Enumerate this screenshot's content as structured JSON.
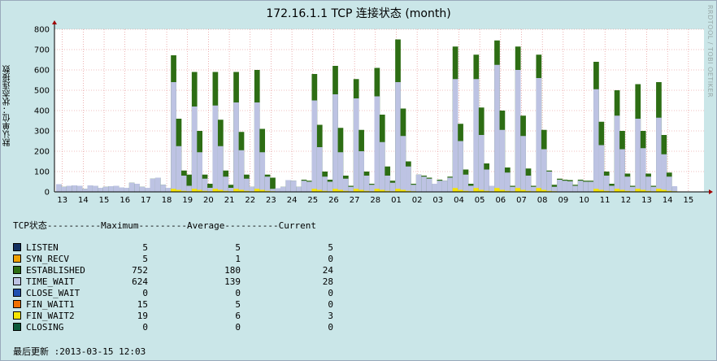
{
  "title": "172.16.1.1 TCP 连接状态 (month)",
  "watermark": "RRDTOOL / TOBI OETIKER",
  "chart_data": {
    "type": "bar",
    "title": "172.16.1.1 TCP 连接状态 (month)",
    "ylabel": "默认单位：状态连接数",
    "ylim": [
      0,
      800
    ],
    "yticks": [
      0,
      100,
      200,
      300,
      400,
      500,
      600,
      700,
      800
    ],
    "xtick_labels": [
      "13",
      "14",
      "15",
      "16",
      "17",
      "18",
      "19",
      "20",
      "21",
      "22",
      "23",
      "24",
      "25",
      "26",
      "27",
      "28",
      "01",
      "02",
      "03",
      "04",
      "05",
      "06",
      "07",
      "08",
      "09",
      "10",
      "11",
      "12",
      "13",
      "14",
      "15"
    ],
    "grid": true,
    "colors": {
      "established": "#2d6d14",
      "time_wait": "#bdc3e3",
      "fin_wait2": "#f5e400"
    },
    "samples_per_day": 4,
    "established": [
      38,
      25,
      30,
      32,
      30,
      15,
      32,
      30,
      20,
      25,
      28,
      30,
      22,
      20,
      45,
      40,
      25,
      20,
      65,
      70,
      35,
      20,
      672,
      360,
      105,
      85,
      590,
      300,
      85,
      40,
      590,
      355,
      105,
      35,
      590,
      295,
      85,
      25,
      600,
      310,
      85,
      70,
      18,
      25,
      58,
      55,
      25,
      60,
      55,
      580,
      330,
      100,
      60,
      620,
      315,
      80,
      30,
      555,
      305,
      100,
      40,
      610,
      380,
      125,
      55,
      750,
      410,
      150,
      40,
      85,
      80,
      70,
      40,
      60,
      55,
      75,
      715,
      335,
      110,
      40,
      675,
      415,
      140,
      30,
      745,
      400,
      120,
      30,
      715,
      375,
      115,
      30,
      675,
      305,
      105,
      35,
      65,
      60,
      58,
      35,
      60,
      55,
      55,
      640,
      345,
      100,
      40,
      500,
      300,
      90,
      30,
      530,
      300,
      90,
      30,
      540,
      280,
      95,
      25
    ],
    "time_wait": [
      38,
      25,
      30,
      32,
      30,
      15,
      32,
      30,
      20,
      25,
      28,
      30,
      22,
      20,
      45,
      40,
      25,
      20,
      65,
      70,
      35,
      20,
      540,
      225,
      80,
      30,
      420,
      195,
      65,
      20,
      425,
      225,
      75,
      20,
      440,
      205,
      65,
      25,
      440,
      195,
      75,
      15,
      18,
      25,
      58,
      55,
      25,
      55,
      50,
      450,
      220,
      75,
      50,
      480,
      195,
      65,
      25,
      460,
      200,
      80,
      35,
      470,
      245,
      80,
      45,
      540,
      275,
      125,
      35,
      85,
      75,
      65,
      40,
      55,
      55,
      70,
      555,
      250,
      85,
      30,
      555,
      280,
      110,
      30,
      625,
      305,
      95,
      25,
      600,
      275,
      80,
      25,
      560,
      210,
      100,
      25,
      60,
      55,
      52,
      30,
      55,
      50,
      50,
      505,
      230,
      80,
      30,
      375,
      210,
      75,
      25,
      360,
      215,
      75,
      25,
      365,
      185,
      75,
      28
    ],
    "fin_wait2": [
      0,
      0,
      0,
      0,
      0,
      0,
      0,
      0,
      0,
      0,
      0,
      0,
      0,
      0,
      0,
      0,
      0,
      0,
      0,
      0,
      0,
      0,
      15,
      10,
      5,
      3,
      15,
      10,
      5,
      3,
      15,
      10,
      5,
      3,
      15,
      10,
      5,
      3,
      15,
      10,
      5,
      3,
      0,
      0,
      0,
      0,
      0,
      0,
      0,
      15,
      10,
      5,
      3,
      15,
      10,
      5,
      3,
      15,
      10,
      5,
      3,
      15,
      10,
      5,
      3,
      15,
      10,
      5,
      3,
      0,
      0,
      0,
      0,
      0,
      0,
      0,
      19,
      10,
      5,
      3,
      19,
      10,
      5,
      3,
      19,
      10,
      5,
      3,
      19,
      10,
      5,
      3,
      19,
      10,
      5,
      3,
      0,
      0,
      0,
      0,
      0,
      0,
      0,
      15,
      10,
      5,
      3,
      15,
      10,
      5,
      3,
      15,
      10,
      5,
      3,
      15,
      10,
      5,
      3
    ]
  },
  "legend": {
    "header": "TCP状态----------Maximum---------Average----------Current",
    "rows": [
      {
        "name": "LISTEN",
        "color": "#123060",
        "max": "5",
        "avg": "5",
        "cur": "5"
      },
      {
        "name": "SYN_RECV",
        "color": "#f0a000",
        "max": "5",
        "avg": "1",
        "cur": "0"
      },
      {
        "name": "ESTABLISHED",
        "color": "#2d6d14",
        "max": "752",
        "avg": "180",
        "cur": "24"
      },
      {
        "name": "TIME_WAIT",
        "color": "#bdc3e3",
        "max": "624",
        "avg": "139",
        "cur": "28"
      },
      {
        "name": "CLOSE_WAIT",
        "color": "#2050b0",
        "max": "0",
        "avg": "0",
        "cur": "0"
      },
      {
        "name": "FIN_WAIT1",
        "color": "#f07000",
        "max": "15",
        "avg": "5",
        "cur": "0"
      },
      {
        "name": "FIN_WAIT2",
        "color": "#f5e400",
        "max": "19",
        "avg": "6",
        "cur": "3"
      },
      {
        "name": "CLOSING",
        "color": "#0a5a3a",
        "max": "0",
        "avg": "0",
        "cur": "0"
      }
    ],
    "last_update": "最后更新 :2013-03-15 12:03"
  }
}
